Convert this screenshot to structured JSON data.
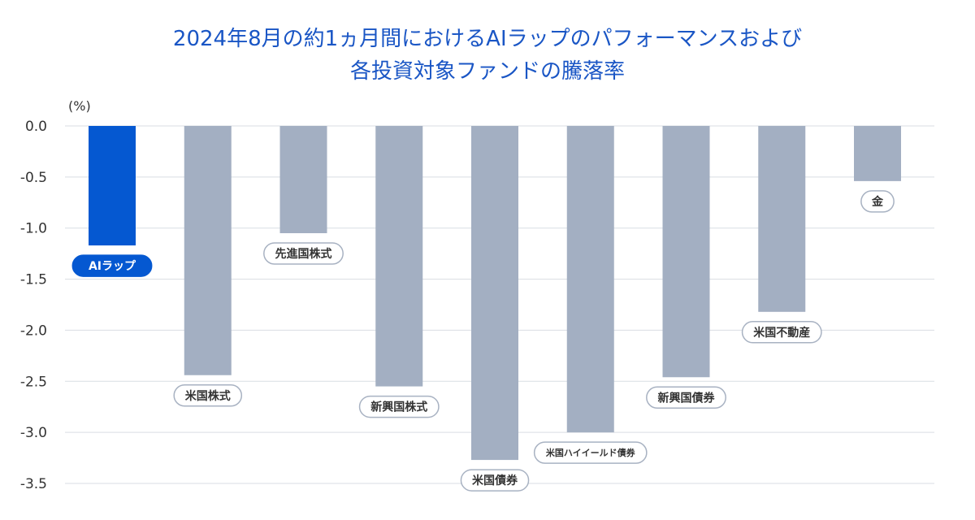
{
  "chart_data": {
    "type": "bar",
    "title_line1": "2024年8月の約1ヵ月間におけるAIラップのパフォーマンスおよび",
    "title_line2": "各投資対象ファンドの騰落率",
    "unit_label": "(%)",
    "ylim": [
      -3.5,
      0.0
    ],
    "yticks": [
      "0.0",
      "-0.5",
      "-1.0",
      "-1.5",
      "-2.0",
      "-2.5",
      "-3.0",
      "-3.5"
    ],
    "ytick_values": [
      0.0,
      -0.5,
      -1.0,
      -1.5,
      -2.0,
      -2.5,
      -3.0,
      -3.5
    ],
    "grid": true,
    "categories": [
      "AIラップ",
      "米国株式",
      "先進国株式",
      "新興国株式",
      "米国債券",
      "米国ハイイールド債券",
      "新興国債券",
      "米国不動産",
      "金"
    ],
    "values": [
      -1.17,
      -2.44,
      -1.05,
      -2.55,
      -3.27,
      -3.0,
      -2.46,
      -1.82,
      -0.54
    ],
    "highlight_index": 0,
    "colors": {
      "highlight": "#0558d1",
      "bar": "#a3afc2",
      "grid": "#d9dde3",
      "axis_text": "#333333",
      "label_border": "#a8b2c2",
      "title": "#1a56c5"
    }
  }
}
